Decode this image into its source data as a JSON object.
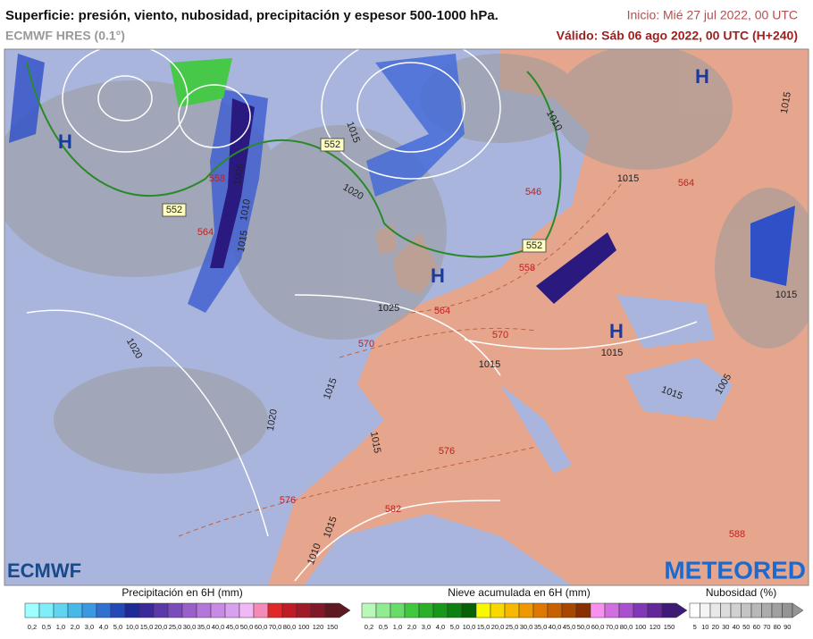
{
  "header": {
    "title": "Superficie: presión, viento, nubosidad, precipitación y espesor 500-1000 hPa.",
    "model": "ECMWF HRES (0.1°)",
    "start": "Inicio: Mié 27 jul 2022, 00 UTC",
    "valid": "Válido: Sáb 06 ago 2022, 00 UTC (H+240)"
  },
  "map": {
    "highs": [
      "H",
      "H",
      "H",
      "H"
    ],
    "isobars": [
      "1015",
      "1020",
      "1010",
      "1015",
      "1015",
      "1005",
      "1010",
      "1015",
      "1025",
      "1020",
      "1015",
      "1020",
      "1015",
      "1015",
      "1015",
      "1015",
      "1015",
      "1005",
      "1015",
      "1010"
    ],
    "thickness": [
      "552",
      "552",
      "552",
      "546",
      "564",
      "558",
      "564",
      "570",
      "570",
      "576",
      "576",
      "582",
      "588",
      "564",
      "558"
    ]
  },
  "logos": {
    "left": "ECMWF",
    "right": "METEORED"
  },
  "legends": [
    {
      "title": "Precipitación en 6H (mm)",
      "labels": [
        "0,2",
        "0,5",
        "1,0",
        "2,0",
        "3,0",
        "4,0",
        "5,0",
        "10,0",
        "15,0",
        "20,0",
        "25,0",
        "30,0",
        "35,0",
        "40,0",
        "45,0",
        "50,0",
        "60,0",
        "70,0",
        "80,0",
        "100",
        "120",
        "150"
      ],
      "colors": [
        "#a0ffff",
        "#80eef8",
        "#60d4f0",
        "#48b8e8",
        "#3c98e0",
        "#3070d0",
        "#2448b8",
        "#1e2a98",
        "#3a2a9a",
        "#5a3aaa",
        "#7a4cba",
        "#9a60ca",
        "#b476d8",
        "#c88ae4",
        "#d8a0ee",
        "#f0b8f4",
        "#f48ab8",
        "#e02828",
        "#c01c28",
        "#a01a28",
        "#801828",
        "#601820"
      ]
    },
    {
      "title": "Nieve acumulada en 6H (mm)",
      "labels": [
        "0,2",
        "0,5",
        "1,0",
        "2,0",
        "3,0",
        "4,0",
        "5,0",
        "10,0",
        "15,0",
        "20,0",
        "25,0",
        "30,0",
        "35,0",
        "40,0",
        "45,0",
        "50,0",
        "60,0",
        "70,0",
        "80,0",
        "100",
        "120",
        "150"
      ],
      "colors": [
        "#b8f8b8",
        "#90ec90",
        "#68dc68",
        "#40c840",
        "#28b028",
        "#189818",
        "#0c8010",
        "#086008",
        "#f8f800",
        "#f8d800",
        "#f8b800",
        "#f09800",
        "#e07800",
        "#c86000",
        "#a84800",
        "#883000",
        "#f890f0",
        "#d070e0",
        "#a850d0",
        "#8038b8",
        "#602898",
        "#401a78"
      ]
    },
    {
      "title": "Nubosidad (%)",
      "labels": [
        "5",
        "10",
        "20",
        "30",
        "40",
        "50",
        "60",
        "70",
        "80",
        "90"
      ],
      "colors": [
        "#ffffff",
        "#f4f4f4",
        "#e8e8e8",
        "#dcdcdc",
        "#d0d0d0",
        "#c4c4c4",
        "#b8b8b8",
        "#acacac",
        "#a0a0a0",
        "#949494"
      ]
    }
  ]
}
